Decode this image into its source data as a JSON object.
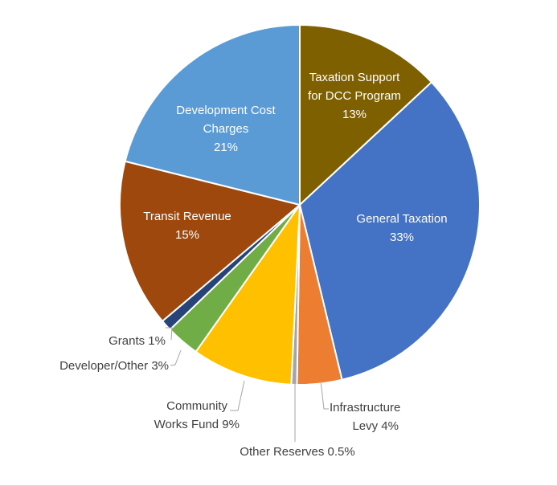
{
  "chart_data": {
    "type": "pie",
    "slices": [
      {
        "label": "Taxation Support for DCC Program",
        "value": 13,
        "pct_text": "13%",
        "color": "#7F6000"
      },
      {
        "label": "General Taxation",
        "value": 33,
        "pct_text": "33%",
        "color": "#4472C4"
      },
      {
        "label": "Infrastructure Levy",
        "value": 4,
        "pct_text": "4%",
        "color": "#ED7D31"
      },
      {
        "label": "Other Reserves",
        "value": 0.5,
        "pct_text": "0.5%",
        "color": "#A5A5A5"
      },
      {
        "label": "Community Works Fund",
        "value": 9,
        "pct_text": "9%",
        "color": "#FFC000"
      },
      {
        "label": "Developer/Other",
        "value": 3,
        "pct_text": "3%",
        "color": "#70AD47"
      },
      {
        "label": "Grants",
        "value": 1,
        "pct_text": "1%",
        "color": "#264478"
      },
      {
        "label": "Transit Revenue",
        "value": 15,
        "pct_text": "15%",
        "color": "#9E480E"
      },
      {
        "label": "Development Cost Charges",
        "value": 21,
        "pct_text": "21%",
        "color": "#5B9BD5"
      }
    ],
    "slice_border_color": "#ffffff",
    "leader_line_color": "#A6A6A6"
  },
  "labels": {
    "taxation_support_1": "Taxation Support",
    "taxation_support_2": "for DCC Program",
    "taxation_support_3": "13%",
    "general_taxation_1": "General Taxation",
    "general_taxation_2": "33%",
    "dcc_1": "Development Cost",
    "dcc_2": "Charges",
    "dcc_3": "21%",
    "transit_1": "Transit Revenue",
    "transit_2": "15%",
    "grants": "Grants 1%",
    "developer_other": "Developer/Other 3%",
    "community_1": "Community",
    "community_2": "Works Fund 9%",
    "infrastructure_1": "Infrastructure",
    "infrastructure_2": "Levy 4%",
    "other_reserves": "Other Reserves 0.5%"
  }
}
